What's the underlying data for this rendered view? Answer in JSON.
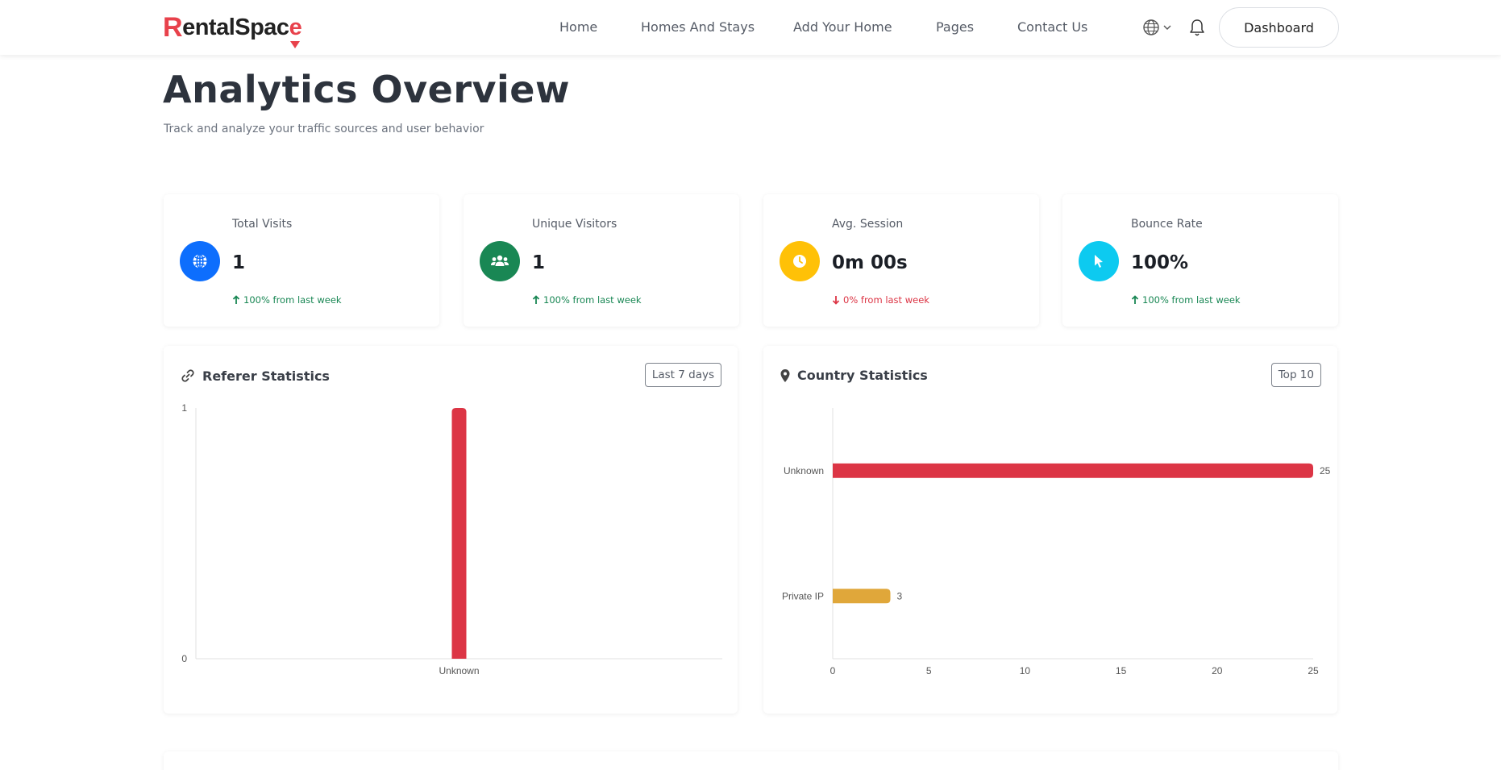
{
  "brand": {
    "logo_text": "RentalSpace"
  },
  "nav": [
    {
      "label": "Home"
    },
    {
      "label": "Homes And Stays"
    },
    {
      "label": "Add Your Home"
    },
    {
      "label": "Pages"
    },
    {
      "label": "Contact Us"
    }
  ],
  "header": {
    "dashboard_label": "Dashboard"
  },
  "page": {
    "title": "Analytics Overview",
    "subtitle": "Track and analyze your traffic sources and user behavior"
  },
  "stats": [
    {
      "label": "Total Visits",
      "value": "1",
      "change": "100% from last week",
      "trend": "up",
      "icon": "globe-icon",
      "color": "#0d6efd"
    },
    {
      "label": "Unique Visitors",
      "value": "1",
      "change": "100% from last week",
      "trend": "up",
      "icon": "users-icon",
      "color": "#198754"
    },
    {
      "label": "Avg. Session",
      "value": "0m 00s",
      "change": "0% from last week",
      "trend": "down",
      "icon": "clock-icon",
      "color": "#ffc107"
    },
    {
      "label": "Bounce Rate",
      "value": "100%",
      "change": "100% from last week",
      "trend": "up",
      "icon": "cursor-icon",
      "color": "#0dcaf0"
    }
  ],
  "referer": {
    "title": "Referer Statistics",
    "filter": "Last 7 days"
  },
  "country": {
    "title": "Country Statistics",
    "filter": "Top 10"
  },
  "chart_data": [
    {
      "type": "bar",
      "categories": [
        "Unknown"
      ],
      "values": [
        1
      ],
      "ylim": [
        0,
        1
      ],
      "yticks": [
        "0",
        "1"
      ],
      "color": "#dc3545"
    },
    {
      "type": "bar",
      "orientation": "horizontal",
      "categories": [
        "Unknown",
        "Private IP"
      ],
      "values": [
        25,
        3
      ],
      "value_labels": [
        "25",
        "3"
      ],
      "xlim": [
        0,
        25
      ],
      "xticks": [
        "0",
        "5",
        "10",
        "15",
        "20",
        "25"
      ],
      "colors": [
        "#dc3545",
        "#e0a73a"
      ]
    }
  ]
}
